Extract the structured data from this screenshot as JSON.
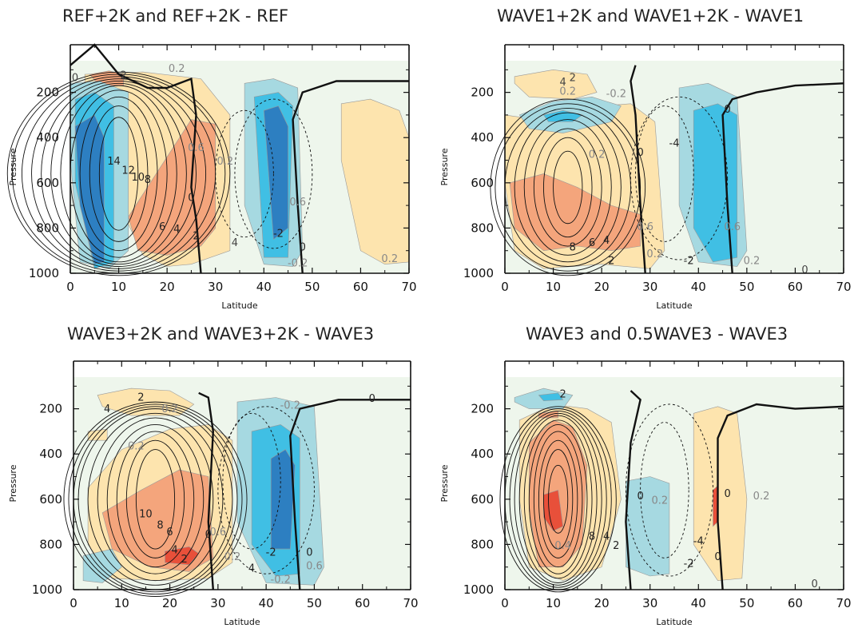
{
  "chart_data": [
    {
      "type": "contour",
      "title": "REF+2K and REF+2K - REF",
      "xlabel": "Latitude",
      "ylabel": "Pressure",
      "xlim": [
        0,
        70
      ],
      "ylim": [
        1000,
        0
      ],
      "xticks": [
        "0",
        "10",
        "20",
        "30",
        "40",
        "50",
        "60",
        "70"
      ],
      "yticks": [
        "200",
        "400",
        "600",
        "800",
        "1000"
      ],
      "ytick_values": [
        200,
        400,
        600,
        800,
        1000
      ],
      "contour_labels": [
        "0",
        "2",
        "0.2",
        "14",
        "12",
        "10",
        "8",
        "6",
        "4",
        "2",
        "0",
        "0.6",
        "0.2",
        "-2",
        "0.6",
        "0",
        "4",
        "-0.2",
        "0.2"
      ],
      "shading": [
        {
          "level": "positive-weak",
          "color": "#fde4ae",
          "x": [
            3,
            15,
            27,
            33,
            33,
            25,
            20,
            15,
            8,
            3
          ],
          "y": [
            120,
            110,
            140,
            300,
            900,
            960,
            970,
            920,
            600,
            200
          ]
        },
        {
          "level": "positive-weak",
          "color": "#fde4ae",
          "x": [
            56,
            62,
            68,
            70,
            70,
            65,
            60,
            56
          ],
          "y": [
            250,
            230,
            280,
            400,
            950,
            960,
            900,
            500
          ]
        },
        {
          "level": "positive-mid",
          "color": "#f4a57c",
          "x": [
            15,
            25,
            30,
            30,
            27,
            20,
            14,
            12
          ],
          "y": [
            650,
            320,
            340,
            800,
            880,
            920,
            900,
            750
          ]
        },
        {
          "level": "positive-mid",
          "color": "#f4a57c",
          "x": [
            4,
            8,
            11,
            11,
            6
          ],
          "y": [
            120,
            105,
            120,
            170,
            170
          ]
        },
        {
          "level": "negative-weak",
          "color": "#a6d9e1",
          "x": [
            0,
            6,
            12,
            12,
            8,
            2,
            0
          ],
          "y": [
            160,
            150,
            200,
            900,
            980,
            950,
            500
          ]
        },
        {
          "level": "negative-weak",
          "color": "#a6d9e1",
          "x": [
            36,
            42,
            47,
            48,
            46,
            40,
            36
          ],
          "y": [
            160,
            140,
            180,
            900,
            970,
            960,
            700
          ]
        },
        {
          "level": "negative-mid",
          "color": "#40bfe4",
          "x": [
            1,
            5,
            9,
            9,
            5,
            1
          ],
          "y": [
            230,
            200,
            260,
            950,
            980,
            600
          ]
        },
        {
          "level": "negative-mid",
          "color": "#40bfe4",
          "x": [
            38,
            43,
            46,
            45,
            40
          ],
          "y": [
            220,
            200,
            260,
            930,
            930
          ]
        },
        {
          "level": "negative-strong",
          "color": "#2d7fc1",
          "x": [
            1,
            5,
            7,
            7,
            5,
            2
          ],
          "y": [
            350,
            300,
            400,
            950,
            960,
            700
          ]
        },
        {
          "level": "negative-strong",
          "color": "#2d7fc1",
          "x": [
            40,
            43,
            45,
            45,
            42
          ],
          "y": [
            280,
            260,
            350,
            800,
            850
          ]
        }
      ]
    },
    {
      "type": "contour",
      "title": "WAVE1+2K and WAVE1+2K - WAVE1",
      "xlabel": "Latitude",
      "ylabel": "Pressure",
      "xlim": [
        0,
        70
      ],
      "ylim": [
        1000,
        0
      ],
      "xticks": [
        "0",
        "10",
        "20",
        "30",
        "40",
        "50",
        "60",
        "70"
      ],
      "yticks": [
        "200",
        "400",
        "600",
        "800",
        "1000"
      ],
      "ytick_values": [
        200,
        400,
        600,
        800,
        1000
      ],
      "contour_labels": [
        "2",
        "4",
        "0.2",
        "-0.2",
        "0",
        "-4",
        "0",
        "0.2",
        "8",
        "6",
        "4",
        "2",
        "0.6",
        "0.2",
        "-2",
        "0.6",
        "0.2",
        "0"
      ],
      "shading": [
        {
          "level": "positive-weak",
          "color": "#fde4ae",
          "x": [
            2,
            10,
            17,
            19,
            14,
            5,
            2
          ],
          "y": [
            130,
            100,
            120,
            200,
            230,
            220,
            160
          ]
        },
        {
          "level": "positive-weak",
          "color": "#fde4ae",
          "x": [
            0,
            10,
            20,
            26,
            31,
            33,
            30,
            20,
            8,
            2,
            0
          ],
          "y": [
            300,
            330,
            260,
            250,
            330,
            900,
            980,
            960,
            980,
            900,
            600
          ]
        },
        {
          "level": "positive-mid",
          "color": "#f4a57c",
          "x": [
            1,
            8,
            15,
            22,
            28,
            28,
            22,
            15,
            8,
            2
          ],
          "y": [
            600,
            560,
            620,
            700,
            740,
            880,
            900,
            880,
            900,
            800
          ]
        },
        {
          "level": "negative-weak",
          "color": "#a6d9e1",
          "x": [
            3,
            10,
            18,
            24,
            22,
            12,
            5
          ],
          "y": [
            300,
            240,
            220,
            260,
            330,
            380,
            360
          ]
        },
        {
          "level": "negative-weak",
          "color": "#a6d9e1",
          "x": [
            36,
            42,
            48,
            50,
            48,
            40,
            36
          ],
          "y": [
            180,
            160,
            220,
            900,
            970,
            950,
            700
          ]
        },
        {
          "level": "negative-mid",
          "color": "#40bfe4",
          "x": [
            39,
            44,
            48,
            48,
            43,
            39
          ],
          "y": [
            280,
            250,
            300,
            930,
            950,
            800
          ]
        },
        {
          "level": "negative-mid",
          "color": "#40bfe4",
          "x": [
            8,
            12,
            16,
            14,
            9
          ],
          "y": [
            300,
            280,
            300,
            330,
            330
          ]
        }
      ]
    },
    {
      "type": "contour",
      "title": "WAVE3+2K and WAVE3+2K - WAVE3",
      "xlabel": "Latitude",
      "ylabel": "Pressure",
      "xlim": [
        0,
        70
      ],
      "ylim": [
        1000,
        0
      ],
      "xticks": [
        "0",
        "10",
        "20",
        "30",
        "40",
        "50",
        "60",
        "70"
      ],
      "yticks": [
        "200",
        "400",
        "600",
        "800",
        "1000"
      ],
      "ytick_values": [
        200,
        400,
        600,
        800,
        1000
      ],
      "contour_labels": [
        "2",
        "4",
        "0.2",
        "0.2",
        "10",
        "8",
        "6",
        "4",
        "2",
        "0",
        "0.6",
        "0.2",
        "4",
        "-0.2",
        "-2",
        "0",
        "0.6",
        "0",
        "-0.2"
      ],
      "shading": [
        {
          "level": "positive-weak",
          "color": "#fde4ae",
          "x": [
            5,
            12,
            20,
            25,
            22,
            12,
            6
          ],
          "y": [
            140,
            110,
            120,
            180,
            230,
            230,
            190
          ]
        },
        {
          "level": "positive-weak",
          "color": "#fde4ae",
          "x": [
            3,
            10,
            20,
            28,
            33,
            33,
            28,
            18,
            8,
            3
          ],
          "y": [
            550,
            380,
            290,
            270,
            340,
            880,
            950,
            960,
            950,
            800
          ]
        },
        {
          "level": "positive-weak",
          "color": "#fde4ae",
          "x": [
            3,
            7,
            7,
            3
          ],
          "y": [
            300,
            290,
            340,
            340
          ]
        },
        {
          "level": "positive-mid",
          "color": "#f4a57c",
          "x": [
            6,
            14,
            22,
            28,
            29,
            24,
            16,
            8
          ],
          "y": [
            660,
            560,
            470,
            500,
            860,
            920,
            900,
            820
          ]
        },
        {
          "level": "positive-strong",
          "color": "#e8503a",
          "x": [
            19,
            24,
            26,
            24,
            19
          ],
          "y": [
            830,
            810,
            840,
            890,
            880
          ]
        },
        {
          "level": "negative-weak",
          "color": "#a6d9e1",
          "x": [
            2,
            8,
            10,
            6,
            2
          ],
          "y": [
            850,
            820,
            900,
            970,
            960
          ]
        },
        {
          "level": "negative-weak",
          "color": "#a6d9e1",
          "x": [
            34,
            42,
            50,
            52,
            50,
            40,
            34
          ],
          "y": [
            170,
            150,
            190,
            900,
            980,
            970,
            700
          ]
        },
        {
          "level": "negative-mid",
          "color": "#40bfe4",
          "x": [
            37,
            43,
            47,
            47,
            42,
            37
          ],
          "y": [
            300,
            270,
            330,
            930,
            940,
            800
          ]
        },
        {
          "level": "negative-strong",
          "color": "#2d7fc1",
          "x": [
            41,
            44,
            46,
            45,
            41
          ],
          "y": [
            420,
            380,
            450,
            820,
            820
          ]
        }
      ]
    },
    {
      "type": "contour",
      "title": "WAVE3 and 0.5WAVE3 - WAVE3",
      "xlabel": "Latitude",
      "ylabel": "Pressure",
      "xlim": [
        0,
        70
      ],
      "ylim": [
        1000,
        0
      ],
      "xticks": [
        "0",
        "10",
        "20",
        "30",
        "40",
        "50",
        "60",
        "70"
      ],
      "yticks": [
        "200",
        "400",
        "600",
        "800",
        "1000"
      ],
      "ytick_values": [
        200,
        400,
        600,
        800,
        1000
      ],
      "contour_labels": [
        "2",
        "0",
        "0.2",
        "-4",
        "0",
        "0.2",
        "0.4",
        "8",
        "4",
        "2",
        "-2",
        "0",
        "0"
      ],
      "shading": [
        {
          "level": "positive-weak",
          "color": "#fde4ae",
          "x": [
            3,
            10,
            17,
            22,
            24,
            20,
            12,
            5,
            3
          ],
          "y": [
            250,
            180,
            200,
            260,
            600,
            900,
            960,
            900,
            600
          ]
        },
        {
          "level": "positive-weak",
          "color": "#fde4ae",
          "x": [
            39,
            44,
            48,
            50,
            49,
            44,
            39
          ],
          "y": [
            220,
            190,
            220,
            600,
            950,
            960,
            800
          ]
        },
        {
          "level": "positive-mid",
          "color": "#f4a57c",
          "x": [
            5,
            10,
            14,
            17,
            16,
            12,
            7,
            5
          ],
          "y": [
            350,
            250,
            280,
            450,
            800,
            900,
            900,
            650
          ]
        },
        {
          "level": "positive-mid",
          "color": "#f4a57c",
          "x": [
            7,
            11,
            11,
            7
          ],
          "y": [
            220,
            210,
            240,
            240
          ]
        },
        {
          "level": "positive-strong",
          "color": "#e8503a",
          "x": [
            8,
            11,
            12,
            10,
            8
          ],
          "y": [
            580,
            560,
            720,
            740,
            680
          ]
        },
        {
          "level": "positive-strong",
          "color": "#e8503a",
          "x": [
            43,
            44,
            44,
            43
          ],
          "y": [
            560,
            540,
            700,
            720
          ]
        },
        {
          "level": "negative-weak",
          "color": "#a6d9e1",
          "x": [
            2,
            8,
            14,
            12,
            5,
            2
          ],
          "y": [
            150,
            110,
            140,
            200,
            200,
            170
          ]
        },
        {
          "level": "negative-weak",
          "color": "#a6d9e1",
          "x": [
            25,
            30,
            34,
            34,
            30,
            25
          ],
          "y": [
            520,
            500,
            530,
            930,
            940,
            900
          ]
        },
        {
          "level": "negative-mid",
          "color": "#40bfe4",
          "x": [
            7,
            11,
            12,
            8
          ],
          "y": [
            140,
            130,
            160,
            165
          ]
        }
      ]
    }
  ]
}
